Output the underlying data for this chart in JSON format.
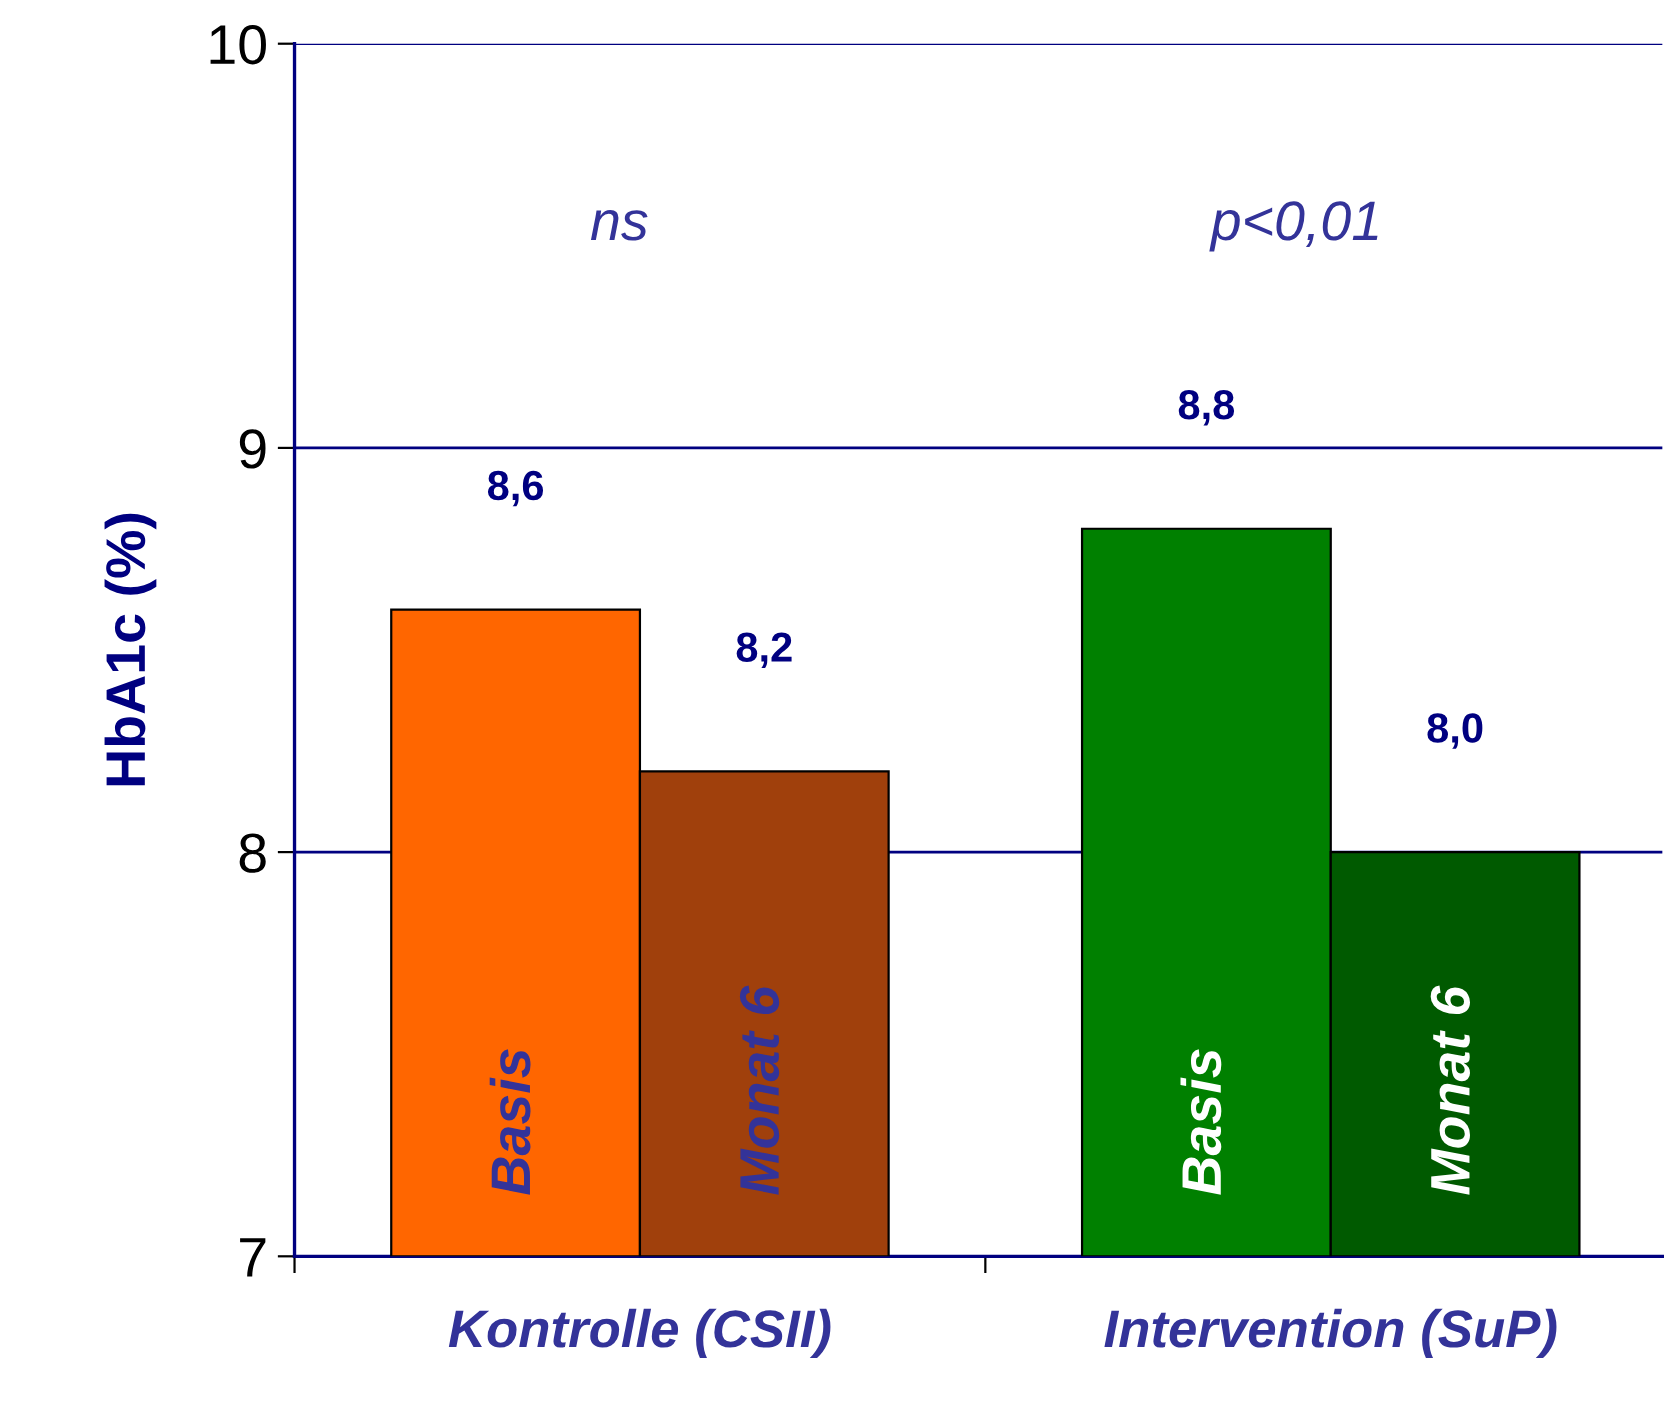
{
  "chart_data": {
    "type": "bar",
    "ylabel": "HbA1c (%)",
    "categories": [
      "Kontrolle (CSII)",
      "Intervention (SuP)"
    ],
    "series": [
      {
        "name": "Basis",
        "colors": [
          "#ff6600",
          "#008000"
        ],
        "values": [
          8.6,
          8.8
        ],
        "value_labels": [
          "8,6",
          "8,8"
        ]
      },
      {
        "name": "Monat 6",
        "colors": [
          "#a0400c",
          "#005a00"
        ],
        "values": [
          8.2,
          8.0
        ],
        "value_labels": [
          "8,2",
          "8,0"
        ]
      }
    ],
    "ylim": [
      7,
      10
    ],
    "yticks": [
      7,
      8,
      9,
      10
    ],
    "grid": "y",
    "legend": false,
    "annotations": [
      "ns",
      "p<0,01"
    ]
  }
}
